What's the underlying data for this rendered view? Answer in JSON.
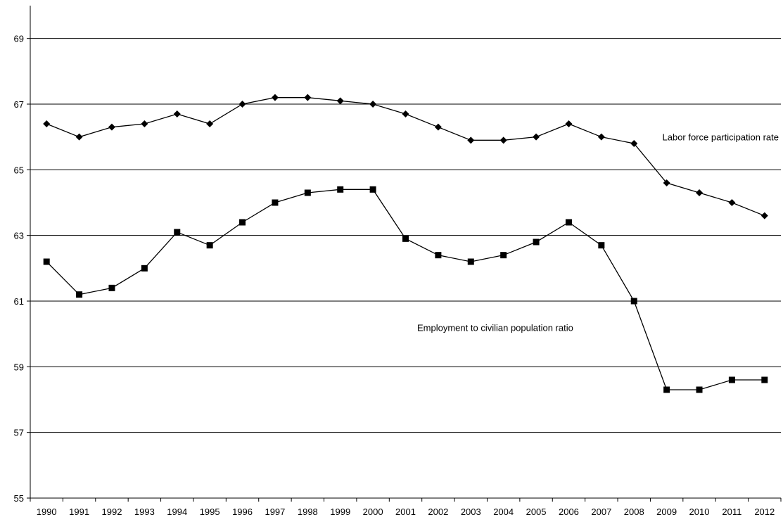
{
  "chart_data": {
    "type": "line",
    "title": "",
    "xlabel": "",
    "ylabel": "",
    "ylim": [
      55,
      70
    ],
    "yticks": [
      55,
      57,
      59,
      61,
      63,
      65,
      67,
      69
    ],
    "grid": "horizontal",
    "categories": [
      "1990",
      "1991",
      "1992",
      "1993",
      "1994",
      "1995",
      "1996",
      "1997",
      "1998",
      "1999",
      "2000",
      "2001",
      "2002",
      "2003",
      "2004",
      "2005",
      "2006",
      "2007",
      "2008",
      "2009",
      "2010",
      "2011",
      "2012"
    ],
    "series": [
      {
        "name": "Labor force participation rate",
        "marker": "diamond",
        "color": "#000000",
        "values": [
          66.4,
          66.0,
          66.3,
          66.4,
          66.7,
          66.4,
          67.0,
          67.2,
          67.2,
          67.1,
          67.0,
          66.7,
          66.3,
          65.9,
          65.9,
          66.0,
          66.4,
          66.0,
          65.8,
          64.6,
          64.3,
          64.0,
          63.6
        ]
      },
      {
        "name": "Employment to civilian population ratio",
        "marker": "square",
        "color": "#000000",
        "values": [
          62.2,
          61.2,
          61.4,
          62.0,
          63.1,
          62.7,
          63.4,
          64.0,
          64.3,
          64.4,
          64.4,
          62.9,
          62.4,
          62.2,
          62.4,
          62.8,
          63.4,
          62.7,
          61.0,
          58.3,
          58.3,
          58.6,
          58.6
        ]
      }
    ]
  }
}
